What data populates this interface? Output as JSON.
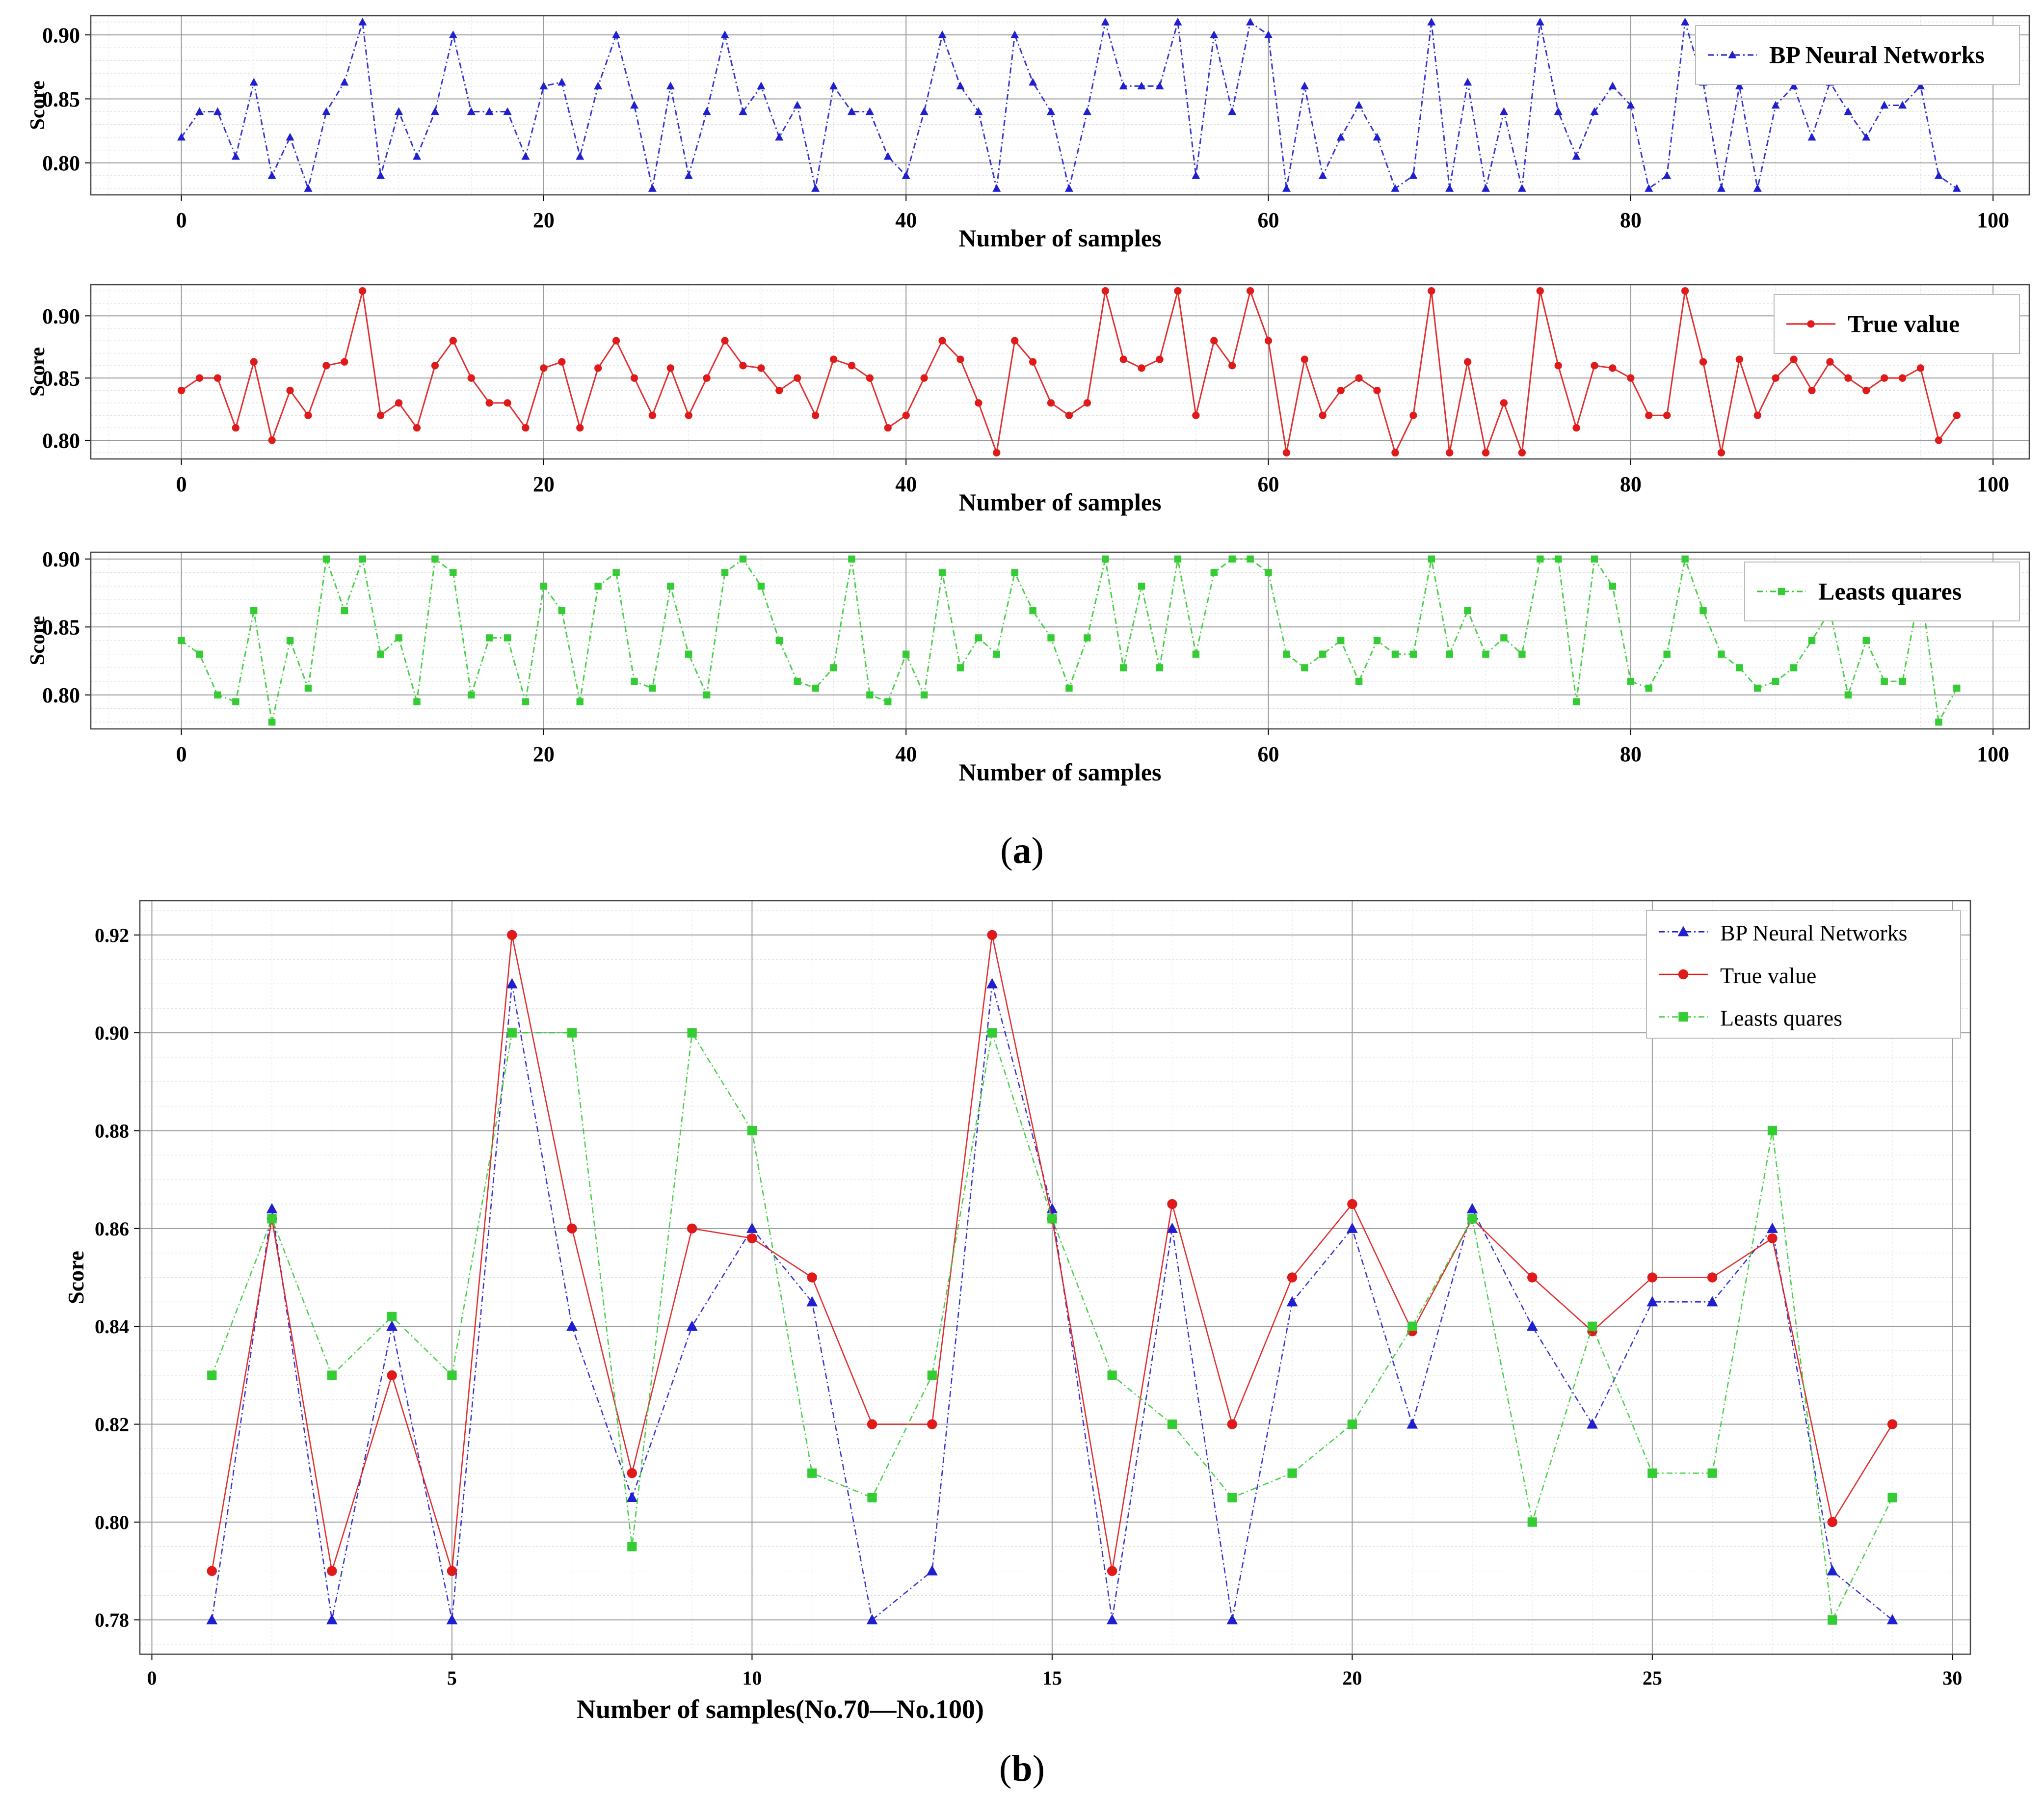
{
  "colors": {
    "bp": "#1f1fd0",
    "true": "#e01a1a",
    "ls": "#33cc33"
  },
  "captions": {
    "a": "a",
    "b": "b"
  },
  "chart_data": [
    {
      "id": "a1",
      "type": "line",
      "xlabel": "Number of samples",
      "ylabel": "Score",
      "xlim": [
        -5,
        102
      ],
      "ylim": [
        0.775,
        0.915
      ],
      "xticks": [
        0,
        20,
        40,
        60,
        80,
        100
      ],
      "yticks": [
        0.8,
        0.85,
        0.9
      ],
      "ytick_labels": [
        "0.80",
        "0.85",
        "0.90"
      ],
      "grid": true,
      "legend_position": "top-right",
      "series": [
        {
          "name": "BP Neural Networks",
          "key": "bp",
          "marker": "triangle",
          "dash": true,
          "values": [
            0.82,
            0.84,
            0.84,
            0.805,
            0.863,
            0.79,
            0.82,
            0.78,
            0.84,
            0.863,
            0.91,
            0.79,
            0.84,
            0.805,
            0.84,
            0.9,
            0.84,
            0.84,
            0.84,
            0.805,
            0.86,
            0.863,
            0.805,
            0.86,
            0.9,
            0.845,
            0.78,
            0.86,
            0.79,
            0.84,
            0.9,
            0.84,
            0.86,
            0.82,
            0.845,
            0.78,
            0.86,
            0.84,
            0.84,
            0.805,
            0.79,
            0.84,
            0.9,
            0.86,
            0.84,
            0.78,
            0.9,
            0.863,
            0.84,
            0.78,
            0.84,
            0.91,
            0.86,
            0.86,
            0.86,
            0.91,
            0.79,
            0.9,
            0.84,
            0.91,
            0.9,
            0.78,
            0.86,
            0.79,
            0.82,
            0.845,
            0.82,
            0.78,
            0.79,
            0.91,
            0.78,
            0.863,
            0.78,
            0.84,
            0.78,
            0.91,
            0.84,
            0.805,
            0.84,
            0.86,
            0.845,
            0.78,
            0.79,
            0.91,
            0.863,
            0.78,
            0.86,
            0.78,
            0.845,
            0.86,
            0.82,
            0.863,
            0.84,
            0.82,
            0.845,
            0.845,
            0.86,
            0.79,
            0.78
          ]
        }
      ]
    },
    {
      "id": "a2",
      "type": "line",
      "xlabel": "Number of samples",
      "ylabel": "Score",
      "xlim": [
        -5,
        102
      ],
      "ylim": [
        0.785,
        0.925
      ],
      "xticks": [
        0,
        20,
        40,
        60,
        80,
        100
      ],
      "yticks": [
        0.8,
        0.85,
        0.9
      ],
      "ytick_labels": [
        "0.80",
        "0.85",
        "0.90"
      ],
      "grid": true,
      "legend_position": "top-right",
      "series": [
        {
          "name": "True value",
          "key": "true",
          "marker": "circle",
          "dash": false,
          "values": [
            0.84,
            0.85,
            0.85,
            0.81,
            0.863,
            0.8,
            0.84,
            0.82,
            0.86,
            0.863,
            0.92,
            0.82,
            0.83,
            0.81,
            0.86,
            0.88,
            0.85,
            0.83,
            0.83,
            0.81,
            0.858,
            0.863,
            0.81,
            0.858,
            0.88,
            0.85,
            0.82,
            0.858,
            0.82,
            0.85,
            0.88,
            0.86,
            0.858,
            0.84,
            0.85,
            0.82,
            0.865,
            0.86,
            0.85,
            0.81,
            0.82,
            0.85,
            0.88,
            0.865,
            0.83,
            0.79,
            0.88,
            0.863,
            0.83,
            0.82,
            0.83,
            0.92,
            0.865,
            0.858,
            0.865,
            0.92,
            0.82,
            0.88,
            0.86,
            0.92,
            0.88,
            0.79,
            0.865,
            0.82,
            0.84,
            0.85,
            0.84,
            0.79,
            0.82,
            0.92,
            0.79,
            0.863,
            0.79,
            0.83,
            0.79,
            0.92,
            0.86,
            0.81,
            0.86,
            0.858,
            0.85,
            0.82,
            0.82,
            0.92,
            0.863,
            0.79,
            0.865,
            0.82,
            0.85,
            0.865,
            0.84,
            0.863,
            0.85,
            0.84,
            0.85,
            0.85,
            0.858,
            0.8,
            0.82
          ]
        }
      ]
    },
    {
      "id": "a3",
      "type": "line",
      "xlabel": "Number of samples",
      "ylabel": "Score",
      "xlim": [
        -5,
        102
      ],
      "ylim": [
        0.775,
        0.905
      ],
      "xticks": [
        0,
        20,
        40,
        60,
        80,
        100
      ],
      "yticks": [
        0.8,
        0.85,
        0.9
      ],
      "ytick_labels": [
        "0.80",
        "0.85",
        "0.90"
      ],
      "grid": true,
      "legend_position": "top-right",
      "series": [
        {
          "name": "Leasts quares",
          "key": "ls",
          "marker": "square",
          "dash": true,
          "values": [
            0.84,
            0.83,
            0.8,
            0.795,
            0.862,
            0.78,
            0.84,
            0.805,
            0.9,
            0.862,
            0.9,
            0.83,
            0.842,
            0.795,
            0.9,
            0.89,
            0.8,
            0.842,
            0.842,
            0.795,
            0.88,
            0.862,
            0.795,
            0.88,
            0.89,
            0.81,
            0.805,
            0.88,
            0.83,
            0.8,
            0.89,
            0.9,
            0.88,
            0.84,
            0.81,
            0.805,
            0.82,
            0.9,
            0.8,
            0.795,
            0.83,
            0.8,
            0.89,
            0.82,
            0.842,
            0.83,
            0.89,
            0.862,
            0.842,
            0.805,
            0.842,
            0.9,
            0.82,
            0.88,
            0.82,
            0.9,
            0.83,
            0.89,
            0.9,
            0.9,
            0.89,
            0.83,
            0.82,
            0.83,
            0.84,
            0.81,
            0.84,
            0.83,
            0.83,
            0.9,
            0.83,
            0.862,
            0.83,
            0.842,
            0.83,
            0.9,
            0.9,
            0.795,
            0.9,
            0.88,
            0.81,
            0.805,
            0.83,
            0.9,
            0.862,
            0.83,
            0.82,
            0.805,
            0.81,
            0.82,
            0.84,
            0.862,
            0.8,
            0.84,
            0.81,
            0.81,
            0.88,
            0.78,
            0.805
          ]
        }
      ]
    },
    {
      "id": "b",
      "type": "line",
      "xlabel": "Number of samples(No.70—No.100)",
      "ylabel": "Score",
      "xlim": [
        -0.2,
        30.3
      ],
      "ylim": [
        0.773,
        0.927
      ],
      "xticks": [
        0,
        5,
        10,
        15,
        20,
        25,
        30
      ],
      "yticks": [
        0.78,
        0.8,
        0.82,
        0.84,
        0.86,
        0.88,
        0.9,
        0.92
      ],
      "ytick_labels": [
        "0.78",
        "0.80",
        "0.82",
        "0.84",
        "0.86",
        "0.88",
        "0.90",
        "0.92"
      ],
      "grid": true,
      "legend_position": "top-right",
      "x": [
        1,
        2,
        3,
        4,
        5,
        6,
        7,
        8,
        9,
        10,
        11,
        12,
        13,
        14,
        15,
        16,
        17,
        18,
        19,
        20,
        21,
        22,
        23,
        24,
        25,
        26,
        27,
        28,
        29
      ],
      "series": [
        {
          "name": "BP Neural Networks",
          "key": "bp",
          "marker": "triangle",
          "dash": true,
          "values": [
            0.78,
            0.864,
            0.78,
            0.84,
            0.78,
            0.91,
            0.84,
            0.805,
            0.84,
            0.86,
            0.845,
            0.78,
            0.79,
            0.91,
            0.864,
            0.78,
            0.86,
            0.78,
            0.845,
            0.86,
            0.82,
            0.864,
            0.84,
            0.82,
            0.845,
            0.845,
            0.86,
            0.79,
            0.78
          ]
        },
        {
          "name": "True value",
          "key": "true",
          "marker": "circle",
          "dash": false,
          "values": [
            0.79,
            0.862,
            0.79,
            0.83,
            0.79,
            0.92,
            0.86,
            0.81,
            0.86,
            0.858,
            0.85,
            0.82,
            0.82,
            0.92,
            0.862,
            0.79,
            0.865,
            0.82,
            0.85,
            0.865,
            0.839,
            0.862,
            0.85,
            0.839,
            0.85,
            0.85,
            0.858,
            0.8,
            0.82
          ]
        },
        {
          "name": "Leasts quares",
          "key": "ls",
          "marker": "square",
          "dash": true,
          "values": [
            0.83,
            0.862,
            0.83,
            0.842,
            0.83,
            0.9,
            0.9,
            0.795,
            0.9,
            0.88,
            0.81,
            0.805,
            0.83,
            0.9,
            0.862,
            0.83,
            0.82,
            0.805,
            0.81,
            0.82,
            0.84,
            0.862,
            0.8,
            0.84,
            0.81,
            0.81,
            0.88,
            0.78,
            0.805
          ]
        }
      ]
    }
  ]
}
